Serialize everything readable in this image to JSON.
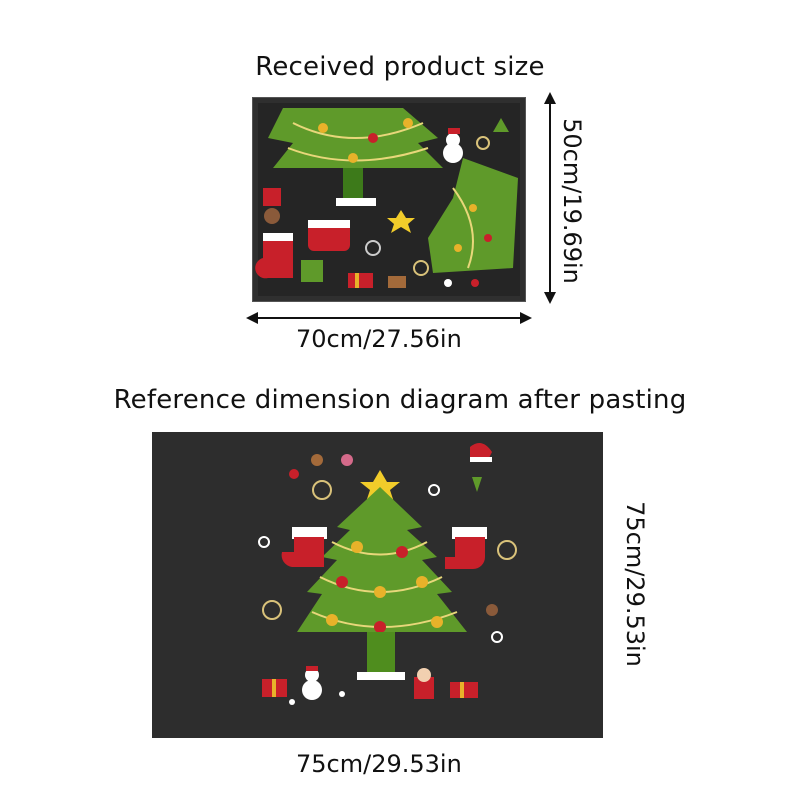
{
  "top_section": {
    "title": "Received product size",
    "width_label": "70cm/27.56in",
    "height_label": "50cm/19.69in"
  },
  "bottom_section": {
    "title": "Reference dimension diagram after pasting",
    "width_label": "75cm/29.53in",
    "height_label": "75cm/29.53in"
  },
  "colors": {
    "panel_background": "#2d2d2d",
    "tree_green": "#5f9a2a",
    "ornament_gold": "#e8b22a",
    "stocking_red": "#c8202a"
  }
}
